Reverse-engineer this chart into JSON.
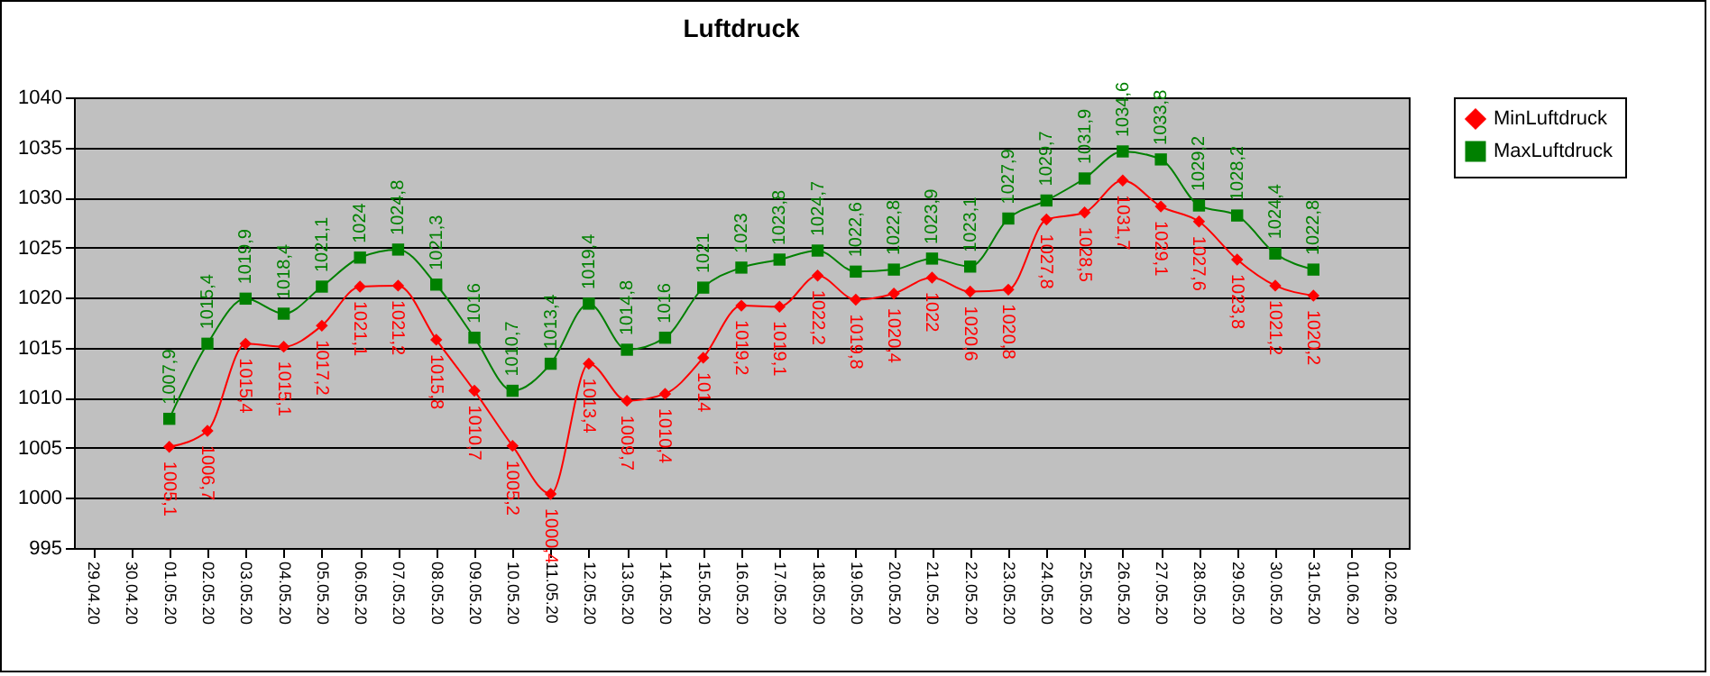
{
  "chart_data": {
    "type": "line",
    "title": "Luftdruck",
    "categories": [
      "29.04.20",
      "30.04.20",
      "01.05.20",
      "02.05.20",
      "03.05.20",
      "04.05.20",
      "05.05.20",
      "06.05.20",
      "07.05.20",
      "08.05.20",
      "09.05.20",
      "10.05.20",
      "11.05.20",
      "12.05.20",
      "13.05.20",
      "14.05.20",
      "15.05.20",
      "16.05.20",
      "17.05.20",
      "18.05.20",
      "19.05.20",
      "20.05.20",
      "21.05.20",
      "22.05.20",
      "23.05.20",
      "24.05.20",
      "25.05.20",
      "26.05.20",
      "27.05.20",
      "28.05.20",
      "29.05.20",
      "30.05.20",
      "31.05.20",
      "01.06.20",
      "02.06.20"
    ],
    "series": [
      {
        "name": "MinLuftdruck",
        "color": "#ff0000",
        "marker": "diamond",
        "values": [
          null,
          null,
          1005.1,
          1006.7,
          1015.4,
          1015.1,
          1017.2,
          1021.1,
          1021.2,
          1015.8,
          1010.7,
          1005.2,
          1000.4,
          1013.4,
          1009.7,
          1010.4,
          1014,
          1019.2,
          1019.1,
          1022.2,
          1019.8,
          1020.4,
          1022,
          1020.6,
          1020.8,
          1027.8,
          1028.5,
          1031.7,
          1029.1,
          1027.6,
          1023.8,
          1021.2,
          1020.2,
          null,
          null
        ],
        "value_labels": [
          null,
          null,
          "1005,1",
          "1006,7",
          "1015,4",
          "1015,1",
          "1017,2",
          "1021,1",
          "1021,2",
          "1015,8",
          "1010,7",
          "1005,2",
          "1000,4",
          "1013,4",
          "1009,7",
          "1010,4",
          "1014",
          "1019,2",
          "1019,1",
          "1022,2",
          "1019,8",
          "1020,4",
          "1022",
          "1020,6",
          "1020,8",
          "1027,8",
          "1028,5",
          "1031,7",
          "1029,1",
          "1027,6",
          "1023,8",
          "1021,2",
          "1020,2",
          null,
          null
        ]
      },
      {
        "name": "MaxLuftdruck",
        "color": "#008000",
        "marker": "square",
        "values": [
          null,
          null,
          1007.9,
          1015.4,
          1019.9,
          1018.4,
          1021.1,
          1024,
          1024.8,
          1021.3,
          1016,
          1010.7,
          1013.4,
          1019.4,
          1014.8,
          1016,
          1021,
          1023,
          1023.8,
          1024.7,
          1022.6,
          1022.8,
          1023.9,
          1023.1,
          1027.9,
          1029.7,
          1031.9,
          1034.6,
          1033.8,
          1029.2,
          1028.2,
          1024.4,
          1022.8,
          null,
          null
        ],
        "value_labels": [
          null,
          null,
          "1007,9",
          "1015,4",
          "1019,9",
          "1018,4",
          "1021,1",
          "1024",
          "1024,8",
          "1021,3",
          "1016",
          "1010,7",
          "1013,4",
          "1019,4",
          "1014,8",
          "1016",
          "1021",
          "1023",
          "1023,8",
          "1024,7",
          "1022,6",
          "1022,8",
          "1023,9",
          "1023,1",
          "1027,9",
          "1029,7",
          "1031,9",
          "1034,6",
          "1033,8",
          "1029,2",
          "1028,2",
          "1024,4",
          "1022,8",
          null,
          null
        ]
      }
    ],
    "ylim": [
      995,
      1040
    ],
    "yticks": [
      995,
      1000,
      1005,
      1010,
      1015,
      1020,
      1025,
      1030,
      1035,
      1040
    ],
    "grid": "y",
    "legend": "right"
  }
}
